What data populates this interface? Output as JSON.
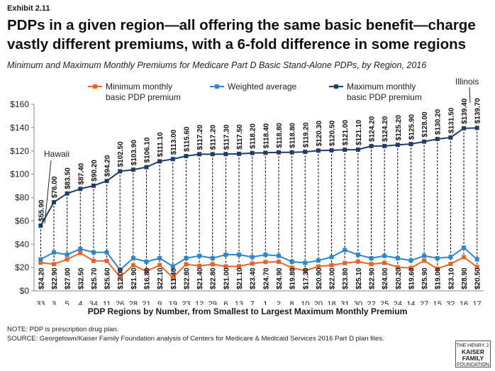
{
  "exhibit": "Exhibit 2.11",
  "title": "PDPs in a given region—all offering the same basic benefit—charge vastly different premiums, with a 6-fold difference in some regions",
  "subtitle": "Minimum and Maximum Monthly Premiums for Medicare Part D Basic Stand-Alone PDPs, by Region, 2016",
  "xlabel": "PDP Regions by Number, from Smallest to Largest Maximum Monthly Premium",
  "note": "NOTE: PDP is prescription drug plan.",
  "source": "SOURCE: Georgetown/Kaiser Family Foundation analysis of Centers for Medicare & Medicaid Services 2016 Part D plan files.",
  "logo": {
    "line1": "THE HENRY J.",
    "line2": "KAISER",
    "line3": "FAMILY",
    "line4": "FOUNDATION"
  },
  "annotations": {
    "hawaii": "Hawaii",
    "illinois": "Illinois"
  },
  "colors": {
    "min": "#e8632b",
    "avg": "#2f86cc",
    "max": "#1f3d66",
    "drop": "#000000"
  },
  "chart_data": {
    "type": "line",
    "title": "Minimum and Maximum Monthly Premiums for Medicare Part D Basic Stand-Alone PDPs, by Region, 2016",
    "xlabel": "PDP Regions by Number, from Smallest to Largest Maximum Monthly Premium",
    "ylabel": "",
    "ylim": [
      0,
      160
    ],
    "yticks": [
      "$0",
      "$20",
      "$40",
      "$60",
      "$80",
      "$100",
      "$120",
      "$140",
      "$160"
    ],
    "grid": false,
    "legend_position": "top",
    "categories": [
      "33",
      "3",
      "5",
      "4",
      "34",
      "11",
      "26",
      "28",
      "21",
      "9",
      "19",
      "23",
      "12",
      "29",
      "6",
      "13",
      "7",
      "1",
      "2",
      "8",
      "10",
      "20",
      "18",
      "31",
      "30",
      "22",
      "25",
      "24",
      "14",
      "27",
      "15",
      "32",
      "16",
      "17"
    ],
    "series": [
      {
        "name": "Minimum monthly basic PDP premium",
        "color": "#e8632b",
        "values": [
          24.2,
          22.9,
          27.0,
          32.5,
          25.7,
          25.6,
          12.0,
          21.9,
          16.8,
          22.1,
          11.4,
          22.8,
          21.4,
          22.8,
          21.0,
          21.1,
          23.4,
          24.7,
          24.9,
          19.8,
          17.3,
          20.9,
          22.0,
          23.8,
          25.1,
          22.9,
          24.0,
          20.2,
          19.6,
          25.9,
          19.0,
          23.1,
          28.9,
          20.5
        ],
        "labels": [
          "$24.20",
          "$22.90",
          "$27.00",
          "$32.50",
          "$25.70",
          "$25.60",
          "$12.00",
          "$21.90",
          "$16.80",
          "$22.10",
          "$11.40",
          "$22.80",
          "$21.40",
          "$22.80",
          "$21.00",
          "$21.10",
          "$23.40",
          "$24.70",
          "$24.90",
          "$19.80",
          "$17.30",
          "$20.90",
          "$22.00",
          "$23.80",
          "$25.10",
          "$22.90",
          "$24.00",
          "$20.20",
          "$19.60",
          "$25.90",
          "$19.00",
          "$23.10",
          "$28.90",
          "$20.50"
        ]
      },
      {
        "name": "Weighted average",
        "color": "#2f86cc",
        "values": [
          27,
          33,
          31,
          36,
          33,
          33,
          18,
          28,
          25,
          28,
          21,
          28,
          30,
          28,
          31,
          31,
          29,
          31,
          30,
          25,
          24,
          26,
          29,
          35,
          31,
          28,
          30,
          28,
          26,
          30,
          28,
          29,
          37,
          27
        ]
      },
      {
        "name": "Maximum monthly basic PDP premium",
        "color": "#1f3d66",
        "values": [
          55.9,
          76.0,
          83.5,
          87.4,
          90.2,
          94.2,
          102.5,
          103.9,
          106.1,
          111.1,
          113.0,
          115.6,
          117.2,
          117.2,
          117.3,
          117.5,
          118.2,
          118.4,
          118.8,
          118.8,
          119.2,
          120.3,
          120.5,
          121.0,
          121.1,
          124.2,
          124.2,
          125.2,
          125.9,
          128.0,
          130.2,
          131.5,
          139.4,
          139.7
        ],
        "labels": [
          "$55.90",
          "$76.00",
          "$83.50",
          "$87.40",
          "$90.20",
          "$94.20",
          "$102.50",
          "$103.90",
          "$106.10",
          "$111.10",
          "$113.00",
          "$115.60",
          "$117.20",
          "$117.20",
          "$117.30",
          "$117.50",
          "$118.20",
          "$118.40",
          "$118.80",
          "$118.80",
          "$119.20",
          "$120.30",
          "$120.50",
          "$121.00",
          "$121.10",
          "$124.20",
          "$124.20",
          "$125.20",
          "$125.90",
          "$128.00",
          "$130.20",
          "$131.50",
          "$139.40",
          "$139.70"
        ]
      }
    ]
  }
}
